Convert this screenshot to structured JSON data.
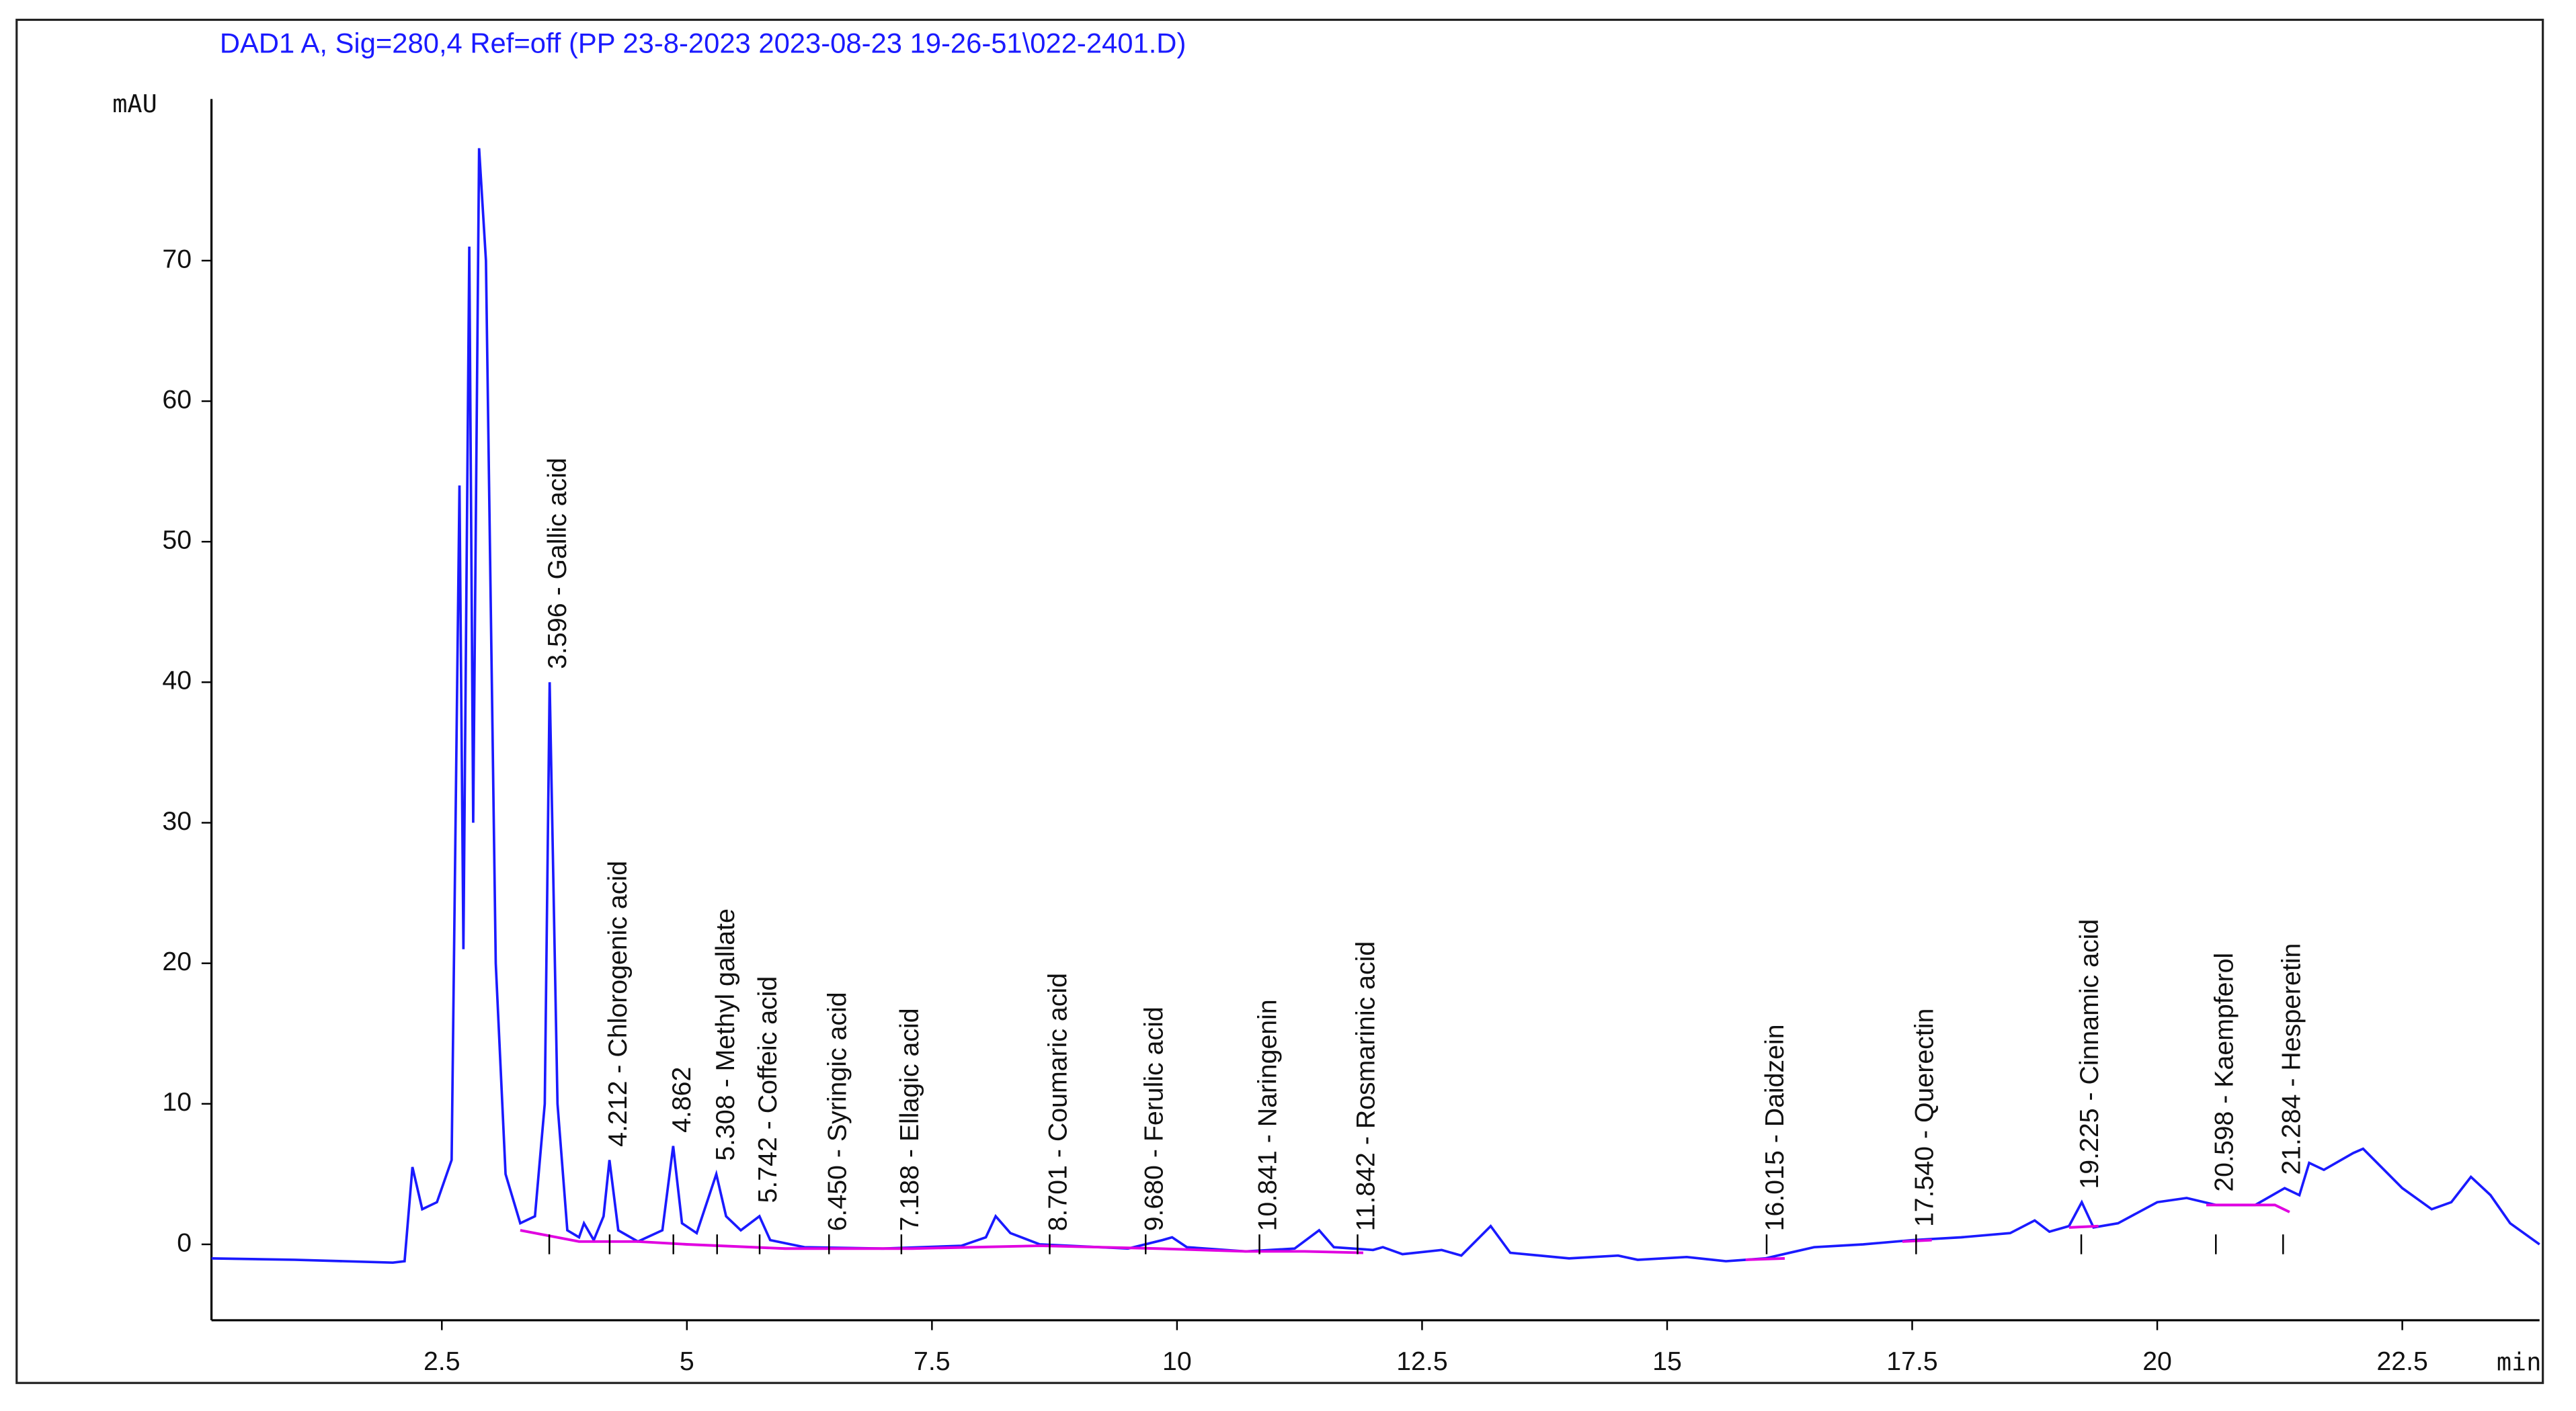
{
  "chart_data": {
    "type": "line",
    "title": "DAD1 A, Sig=280,4 Ref=off (PP 23-8-2023 2023-08-23 19-26-51\\022-2401.D)",
    "y_label": "mAU",
    "x_label": "min",
    "xlim": [
      0.15,
      23.9
    ],
    "ylim": [
      -5.4,
      81.5
    ],
    "xticks": [
      2.5,
      5,
      7.5,
      10,
      12.5,
      15,
      17.5,
      20,
      22.5
    ],
    "yticks": [
      0,
      10,
      20,
      30,
      40,
      50,
      60,
      70
    ],
    "series": [
      {
        "color": "#1a1aff",
        "x": [
          0.15,
          1.0,
          2.0,
          2.12,
          2.2,
          2.3,
          2.45,
          2.6,
          2.68,
          2.72,
          2.78,
          2.82,
          2.88,
          2.95,
          3.05,
          3.15,
          3.3,
          3.45,
          3.55,
          3.6,
          3.68,
          3.78,
          3.9,
          3.95,
          4.05,
          4.15,
          4.21,
          4.3,
          4.5,
          4.75,
          4.86,
          4.95,
          5.1,
          5.3,
          5.4,
          5.55,
          5.74,
          5.85,
          6.2,
          7.0,
          7.8,
          8.05,
          8.15,
          8.3,
          8.6,
          9.5,
          9.85,
          9.95,
          10.1,
          10.7,
          11.2,
          11.45,
          11.6,
          12.0,
          12.1,
          12.3,
          12.7,
          12.9,
          13.2,
          13.4,
          14.0,
          14.5,
          14.7,
          15.2,
          15.6,
          16.0,
          16.5,
          17.0,
          17.5,
          18.0,
          18.5,
          18.75,
          18.9,
          19.1,
          19.23,
          19.35,
          19.6,
          20.0,
          20.3,
          20.6,
          21.0,
          21.3,
          21.45,
          21.55,
          21.7,
          22.0,
          22.1,
          22.5,
          22.8,
          23.0,
          23.2,
          23.4,
          23.6,
          23.9
        ],
        "values": [
          -1,
          -1.1,
          -1.3,
          -1.2,
          5.5,
          2.5,
          3,
          6,
          54,
          21,
          71,
          30,
          78,
          70,
          20,
          5,
          1.5,
          2,
          10,
          40,
          10,
          1,
          0.5,
          1.5,
          0.3,
          2,
          6,
          1,
          0.2,
          1,
          7,
          1.5,
          0.8,
          5,
          2,
          1,
          2,
          0.3,
          -0.2,
          -0.3,
          -0.1,
          0.5,
          2,
          0.8,
          0,
          -0.3,
          0.3,
          0.5,
          -0.2,
          -0.5,
          -0.3,
          1,
          -0.2,
          -0.4,
          -0.2,
          -0.7,
          -0.4,
          -0.8,
          1.3,
          -0.6,
          -1,
          -0.8,
          -1.1,
          -0.9,
          -1.2,
          -1,
          -0.2,
          0,
          0.3,
          0.5,
          0.8,
          1.7,
          0.9,
          1.3,
          3,
          1.2,
          1.5,
          3,
          3.3,
          2.8,
          2.8,
          4,
          3.5,
          5.8,
          5.3,
          6.5,
          6.8,
          4,
          2.5,
          3,
          4.8,
          3.5,
          1.5,
          0
        ]
      },
      {
        "color": "#e000e0",
        "x": [
          3.3,
          3.9,
          4.5,
          5.0,
          6.0,
          7.3,
          8.6,
          9.8,
          10.7,
          11.3,
          11.9,
          null,
          15.8,
          16.2,
          null,
          17.4,
          17.7,
          null,
          19.1,
          19.4,
          null,
          20.5,
          21.2,
          21.35
        ],
        "values": [
          1,
          0.2,
          0.2,
          0,
          -0.3,
          -0.3,
          -0.1,
          -0.3,
          -0.5,
          -0.5,
          -0.6,
          null,
          -1.1,
          -1,
          null,
          0.2,
          0.3,
          null,
          1.2,
          1.3,
          null,
          2.8,
          2.8,
          2.3
        ]
      }
    ],
    "peaks": [
      {
        "x": 3.596,
        "label": "3.596 -  Gallic acid"
      },
      {
        "x": 4.212,
        "label": "4.212 -  Chlorogenic acid"
      },
      {
        "x": 4.862,
        "label": "4.862"
      },
      {
        "x": 5.308,
        "label": "5.308 -  Methyl gallate"
      },
      {
        "x": 5.742,
        "label": "5.742 -  Coffeic acid"
      },
      {
        "x": 6.45,
        "label": "6.450 -  Syringic acid"
      },
      {
        "x": 7.188,
        "label": "7.188 -  Ellagic acid"
      },
      {
        "x": 8.701,
        "label": "8.701 -  Coumaric acid"
      },
      {
        "x": 9.68,
        "label": "9.680 -  Ferulic acid"
      },
      {
        "x": 10.841,
        "label": "10.841 -  Naringenin"
      },
      {
        "x": 11.842,
        "label": "11.842 -  Rosmarinic acid"
      },
      {
        "x": 16.015,
        "label": "16.015 -  Daidzein"
      },
      {
        "x": 17.54,
        "label": "17.540 -  Querectin"
      },
      {
        "x": 19.225,
        "label": "19.225 -  Cinnamic acid"
      },
      {
        "x": 20.598,
        "label": "20.598 -  Kaempferol"
      },
      {
        "x": 21.284,
        "label": "21.284 -  Hesperetin"
      }
    ]
  }
}
